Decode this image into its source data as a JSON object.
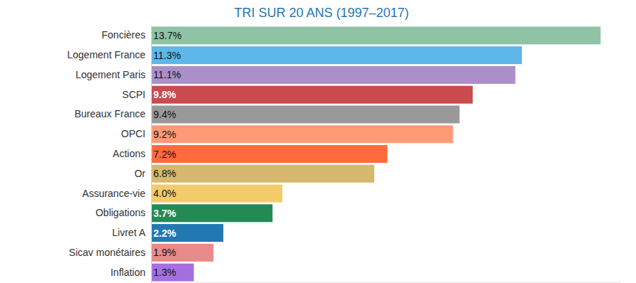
{
  "chart_data": {
    "type": "bar",
    "title": "TRI SUR 20 ANS (1997–2017)",
    "orientation": "horizontal",
    "categories": [
      "Foncières",
      "Logement France",
      "Logement Paris",
      "SCPI",
      "Bureaux France",
      "OPCI",
      "Actions",
      "Or",
      "Assurance-vie",
      "Obligations",
      "Livret A",
      "Sicav monétaires",
      "Inflation"
    ],
    "values": [
      13.7,
      11.3,
      11.1,
      9.8,
      9.4,
      9.2,
      7.2,
      6.8,
      4.0,
      3.7,
      2.2,
      1.9,
      1.3
    ],
    "value_labels": [
      "13.7%",
      "11.3%",
      "11.1%",
      "9.8%",
      "9.4%",
      "9.2%",
      "7.2%",
      "6.8%",
      "4.0%",
      "3.7%",
      "2.2%",
      "1.9%",
      "1.3%"
    ],
    "colors": [
      "#8fc3a5",
      "#5db7e8",
      "#ab8fc9",
      "#c94a4f",
      "#999999",
      "#ff9a76",
      "#ff6b3d",
      "#d4b96e",
      "#f2cb6b",
      "#238a53",
      "#2279b1",
      "#e88a8a",
      "#a66fe0"
    ],
    "xlim": [
      0,
      14.3
    ],
    "data_labels": true,
    "tick_labels": "y",
    "grid": false
  }
}
